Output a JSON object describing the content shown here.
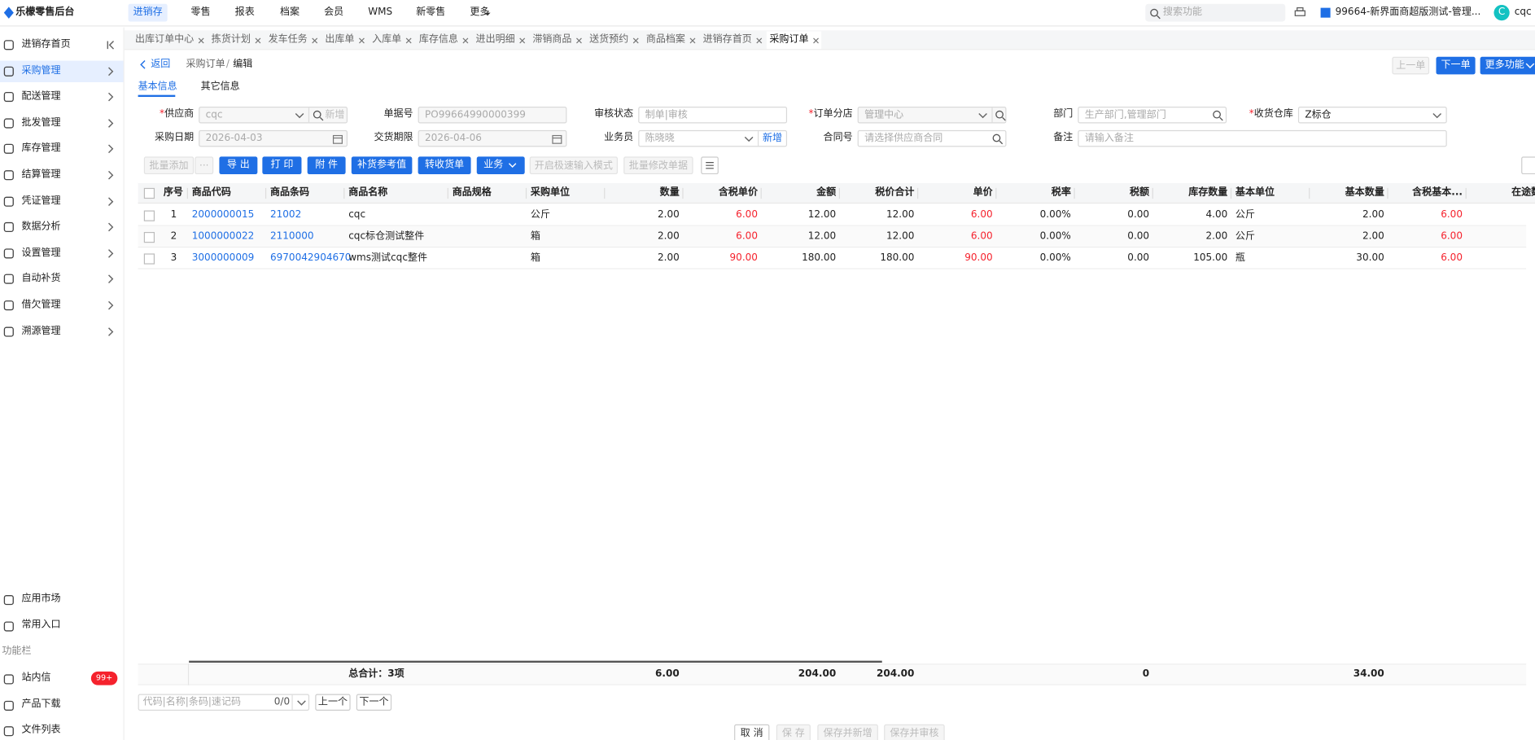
{
  "topbar": {
    "logo": "乐檬零售后台",
    "nav": [
      "进销存",
      "零售",
      "报表",
      "档案",
      "会员",
      "WMS",
      "新零售",
      "更多"
    ],
    "active_nav": 0,
    "search_placeholder": "搜索功能",
    "store": "99664-新界面商超版测试-管理...",
    "avatar": "C",
    "user": "cqc"
  },
  "sidebar": {
    "items": [
      "进销存首页",
      "采购管理",
      "配送管理",
      "批发管理",
      "库存管理",
      "结算管理",
      "凭证管理",
      "数据分析",
      "设置管理",
      "自动补货",
      "借欠管理",
      "溯源管理"
    ],
    "active": 1,
    "bottom": [
      "应用市场",
      "常用入口"
    ],
    "section": "功能栏",
    "tools": [
      {
        "label": "站内信",
        "badge": "99+"
      },
      {
        "label": "产品下载"
      },
      {
        "label": "文件列表"
      }
    ]
  },
  "tabs": {
    "items": [
      "出库订单中心",
      "拣货计划",
      "发车任务",
      "出库单",
      "入库单",
      "库存信息",
      "进出明细",
      "滞销商品",
      "送货预约",
      "商品档案",
      "进销存首页",
      "采购订单"
    ],
    "active": 11
  },
  "header": {
    "back": "返回",
    "crumbs": [
      "采购订单",
      "编辑"
    ],
    "separator": "/",
    "buttons": [
      {
        "label": "上一单",
        "style": "disabled"
      },
      {
        "label": "下一单",
        "style": "primary"
      },
      {
        "label": "更多功能",
        "style": "primary"
      }
    ]
  },
  "subtabs": {
    "items": [
      "基本信息",
      "其它信息"
    ],
    "active": 0
  },
  "form": {
    "rows": [
      [
        {
          "label": "供应商",
          "required_mark": "*",
          "placeholder": "cqc",
          "control": "select",
          "extra": "新增"
        },
        {
          "label": "单据号",
          "placeholder": "PO99664990000399",
          "control": "text"
        },
        {
          "label": "审核状态",
          "placeholder": "制单|审核",
          "control": "text"
        },
        {
          "label": "订单分店",
          "required_mark": "*",
          "placeholder": "管理中心",
          "control": "select"
        },
        {
          "label": "部门",
          "placeholder": "生产部门,管理部门",
          "control": "search"
        },
        {
          "label": "收货仓库",
          "required_mark": "*",
          "value": "Z标仓",
          "control": "dropdown"
        }
      ],
      [
        {
          "label": "采购日期",
          "placeholder": "2026-04-03",
          "control": "date"
        },
        {
          "label": "交货期限",
          "placeholder": "2026-04-06",
          "control": "date"
        },
        {
          "label": "业务员",
          "placeholder": "陈晓晓",
          "control": "select",
          "link": "新增"
        },
        {
          "label": "合同号",
          "placeholder": "请选择供应商合同",
          "control": "search"
        },
        {
          "label": "备注",
          "placeholder": "请输入备注",
          "control": "wide"
        }
      ]
    ]
  },
  "toolbar": [
    {
      "label": "批量添加",
      "style": "disabled"
    },
    {
      "label": "···",
      "style": "disabled"
    },
    {
      "label": "导 出",
      "style": "primary"
    },
    {
      "label": "打 印",
      "style": "primary"
    },
    {
      "label": "附 件",
      "style": "primary"
    },
    {
      "label": "补货参考值",
      "style": "primary"
    },
    {
      "label": "转收货单",
      "style": "primary"
    },
    {
      "label": "业务",
      "style": "primary"
    },
    {
      "label": "开启极速输入模式",
      "style": "disabled"
    },
    {
      "label": "批量修改单据",
      "style": "disabled"
    }
  ],
  "table": {
    "columns": [
      "序号",
      "商品代码",
      "商品条码",
      "商品名称",
      "商品规格",
      "采购单位",
      "数量",
      "含税单价",
      "金额",
      "税价合计",
      "单价",
      "税率",
      "税额",
      "库存数量",
      "基本单位",
      "基本数量",
      "含税基本...",
      "在途数"
    ],
    "rows": [
      [
        "1",
        "2000000015",
        "21002",
        "cqc",
        null,
        "公斤",
        "2.00",
        "6.00",
        "12.00",
        "12.00",
        "6.00",
        "0.00%",
        "0.00",
        "4.00",
        "公斤",
        "2.00",
        "6.00",
        null
      ],
      [
        "2",
        "1000000022",
        "2110000",
        "cqc标仓测试整件",
        null,
        "箱",
        "2.00",
        "6.00",
        "12.00",
        "12.00",
        "6.00",
        "0.00%",
        "0.00",
        "2.00",
        "公斤",
        "2.00",
        "6.00",
        null
      ],
      [
        "3",
        "3000000009",
        "6970042904670",
        "wms测试cqc整件",
        null,
        "箱",
        "2.00",
        "90.00",
        "180.00",
        "180.00",
        "90.00",
        "0.00%",
        "0.00",
        "105.00",
        "瓶",
        "30.00",
        "6.00",
        null
      ]
    ],
    "totals": [
      null,
      null,
      null,
      "总合计：3项",
      null,
      null,
      "6.00",
      null,
      "204.00",
      "204.00",
      null,
      null,
      "0",
      null,
      null,
      "34.00",
      null,
      null
    ]
  },
  "finder": {
    "placeholder": "代码|名称|条码|速记码",
    "count": "0/0",
    "buttons": [
      "上一个",
      "下一个"
    ]
  },
  "actions": [
    {
      "label": "取 消",
      "style": "default"
    },
    {
      "label": "保 存",
      "style": "disabled"
    },
    {
      "label": "保存并新增",
      "style": "disabled"
    },
    {
      "label": "保存并审核",
      "style": "disabled"
    }
  ]
}
